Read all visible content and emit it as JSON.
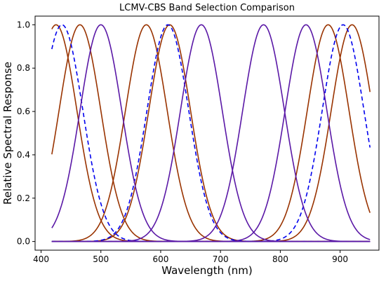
{
  "chart_data": {
    "type": "line",
    "title": "LCMV-CBS Band Selection Comparison",
    "xlabel": "Wavelength (nm)",
    "ylabel": "Relative Spectral Response",
    "xlim": [
      390,
      965
    ],
    "ylim": [
      -0.04,
      1.04
    ],
    "x_range": [
      418,
      950
    ],
    "grid": false,
    "legend": "none",
    "x_ticks": [
      400,
      500,
      600,
      700,
      800,
      900
    ],
    "x_tick_labels": [
      "400",
      "500",
      "600",
      "700",
      "800",
      "900"
    ],
    "y_ticks": [
      0.0,
      0.2,
      0.4,
      0.6,
      0.8,
      1.0
    ],
    "y_tick_labels": [
      "0.0",
      "0.2",
      "0.4",
      "0.6",
      "0.8",
      "1.0"
    ],
    "colors": {
      "brown": "#993300",
      "blue": "#0000ee",
      "purple": "#5a18a6"
    },
    "series": [
      {
        "style": "brown-solid",
        "color": "#993300",
        "dash": false,
        "peaks_nm": [
          425,
          465,
          576,
          615,
          880,
          920
        ],
        "fwhm_nm": 82
      },
      {
        "style": "blue-dashed",
        "color": "#0000ee",
        "dash": true,
        "peaks_nm": [
          435,
          612,
          905
        ],
        "fwhm_nm": 82
      },
      {
        "style": "purple-solid",
        "color": "#5a18a6",
        "dash": false,
        "peaks_nm": [
          500,
          668,
          772,
          843
        ],
        "fwhm_nm": 82
      }
    ]
  }
}
